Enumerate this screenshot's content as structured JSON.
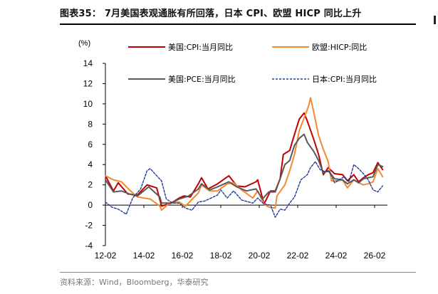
{
  "header": {
    "title": "图表35： 7月美国表观通胀有所回落，日本 CPI、欧盟 HICP 同比上升"
  },
  "footer": {
    "source": "资料来源：Wind，Bloomberg，华泰研究"
  },
  "chart_data": {
    "type": "line",
    "unit_label": "(%)",
    "ylim": [
      -4,
      14
    ],
    "y_ticks": [
      -4,
      -2,
      0,
      2,
      4,
      6,
      8,
      10,
      12,
      14
    ],
    "xlim": [
      "2012-02",
      "2026-10"
    ],
    "x_ticks": [
      "12-02",
      "14-02",
      "16-02",
      "18-02",
      "20-02",
      "22-02",
      "24-02",
      "26-02"
    ],
    "x_tick_dates": [
      "2012-02",
      "2014-02",
      "2016-02",
      "2018-02",
      "2020-02",
      "2022-02",
      "2024-02",
      "2026-02"
    ],
    "grid": false,
    "legend": "top, two rows inside plot",
    "series": [
      {
        "name": "美国:CPI:当月同比",
        "color": "#c00000",
        "style": "solid",
        "points": [
          [
            "2012-02",
            2.9
          ],
          [
            "2012-07",
            1.4
          ],
          [
            "2012-10",
            2.2
          ],
          [
            "2013-04",
            1.1
          ],
          [
            "2013-10",
            1.0
          ],
          [
            "2014-04",
            2.0
          ],
          [
            "2014-10",
            1.7
          ],
          [
            "2015-01",
            -0.1
          ],
          [
            "2015-07",
            0.2
          ],
          [
            "2015-12",
            0.7
          ],
          [
            "2016-03",
            0.9
          ],
          [
            "2016-07",
            0.8
          ],
          [
            "2016-12",
            2.1
          ],
          [
            "2017-02",
            2.7
          ],
          [
            "2017-06",
            1.6
          ],
          [
            "2017-12",
            2.1
          ],
          [
            "2018-07",
            2.9
          ],
          [
            "2018-12",
            1.9
          ],
          [
            "2019-05",
            1.8
          ],
          [
            "2019-12",
            2.3
          ],
          [
            "2020-01",
            2.5
          ],
          [
            "2020-05",
            0.1
          ],
          [
            "2020-09",
            1.4
          ],
          [
            "2020-12",
            1.4
          ],
          [
            "2021-03",
            2.6
          ],
          [
            "2021-05",
            5.0
          ],
          [
            "2021-09",
            5.4
          ],
          [
            "2021-12",
            7.0
          ],
          [
            "2022-03",
            8.5
          ],
          [
            "2022-06",
            9.1
          ],
          [
            "2022-08",
            8.3
          ],
          [
            "2022-12",
            6.5
          ],
          [
            "2023-03",
            5.0
          ],
          [
            "2023-06",
            3.0
          ],
          [
            "2023-09",
            3.7
          ],
          [
            "2024-01",
            3.1
          ],
          [
            "2024-06",
            3.0
          ],
          [
            "2024-09",
            2.4
          ],
          [
            "2025-01",
            3.0
          ],
          [
            "2025-04",
            2.3
          ],
          [
            "2025-07",
            2.7
          ],
          [
            "2025-10",
            3.0
          ],
          [
            "2026-01",
            3.2
          ],
          [
            "2026-04",
            4.2
          ],
          [
            "2026-07",
            3.5
          ]
        ]
      },
      {
        "name": "欧盟:HICP:同比",
        "color": "#f28a30",
        "style": "solid",
        "points": [
          [
            "2012-02",
            2.9
          ],
          [
            "2012-07",
            2.5
          ],
          [
            "2012-12",
            2.3
          ],
          [
            "2013-05",
            1.5
          ],
          [
            "2013-10",
            0.8
          ],
          [
            "2014-06",
            0.6
          ],
          [
            "2014-12",
            -0.1
          ],
          [
            "2015-01",
            -0.5
          ],
          [
            "2015-06",
            0.2
          ],
          [
            "2015-12",
            0.3
          ],
          [
            "2016-04",
            -0.1
          ],
          [
            "2016-12",
            1.2
          ],
          [
            "2017-02",
            2.0
          ],
          [
            "2017-07",
            1.4
          ],
          [
            "2017-12",
            1.4
          ],
          [
            "2018-06",
            2.1
          ],
          [
            "2018-10",
            2.2
          ],
          [
            "2019-03",
            1.5
          ],
          [
            "2019-10",
            0.7
          ],
          [
            "2020-01",
            1.4
          ],
          [
            "2020-05",
            0.1
          ],
          [
            "2020-08",
            -0.2
          ],
          [
            "2020-12",
            -0.3
          ],
          [
            "2021-01",
            0.9
          ],
          [
            "2021-06",
            2.0
          ],
          [
            "2021-09",
            3.4
          ],
          [
            "2021-12",
            5.0
          ],
          [
            "2022-03",
            7.4
          ],
          [
            "2022-06",
            8.6
          ],
          [
            "2022-09",
            9.9
          ],
          [
            "2022-10",
            10.6
          ],
          [
            "2022-12",
            9.2
          ],
          [
            "2023-03",
            6.9
          ],
          [
            "2023-06",
            5.5
          ],
          [
            "2023-09",
            4.3
          ],
          [
            "2023-11",
            2.4
          ],
          [
            "2024-03",
            2.4
          ],
          [
            "2024-06",
            2.5
          ],
          [
            "2024-09",
            1.7
          ],
          [
            "2025-01",
            2.5
          ],
          [
            "2025-04",
            2.2
          ],
          [
            "2025-07",
            2.0
          ],
          [
            "2025-10",
            2.1
          ],
          [
            "2026-01",
            2.3
          ],
          [
            "2026-04",
            3.6
          ],
          [
            "2026-07",
            2.8
          ]
        ]
      },
      {
        "name": "美国:PCE:当月同比",
        "color": "#595959",
        "style": "solid",
        "points": [
          [
            "2012-02",
            2.5
          ],
          [
            "2012-07",
            1.3
          ],
          [
            "2012-12",
            1.4
          ],
          [
            "2013-05",
            1.1
          ],
          [
            "2013-10",
            0.9
          ],
          [
            "2014-05",
            1.8
          ],
          [
            "2014-12",
            0.8
          ],
          [
            "2015-01",
            0.2
          ],
          [
            "2015-07",
            0.2
          ],
          [
            "2015-12",
            0.6
          ],
          [
            "2016-06",
            0.9
          ],
          [
            "2016-12",
            1.6
          ],
          [
            "2017-02",
            2.1
          ],
          [
            "2017-07",
            1.5
          ],
          [
            "2017-12",
            1.8
          ],
          [
            "2018-07",
            2.3
          ],
          [
            "2018-12",
            1.8
          ],
          [
            "2019-06",
            1.4
          ],
          [
            "2019-12",
            1.6
          ],
          [
            "2020-04",
            0.6
          ],
          [
            "2020-08",
            1.3
          ],
          [
            "2020-12",
            1.3
          ],
          [
            "2021-03",
            2.6
          ],
          [
            "2021-06",
            4.0
          ],
          [
            "2021-09",
            4.4
          ],
          [
            "2021-12",
            5.9
          ],
          [
            "2022-03",
            6.6
          ],
          [
            "2022-06",
            7.0
          ],
          [
            "2022-08",
            6.2
          ],
          [
            "2022-12",
            5.3
          ],
          [
            "2023-03",
            4.4
          ],
          [
            "2023-06",
            3.2
          ],
          [
            "2023-09",
            3.4
          ],
          [
            "2024-01",
            2.6
          ],
          [
            "2024-06",
            2.5
          ],
          [
            "2024-09",
            2.1
          ],
          [
            "2025-01",
            2.5
          ],
          [
            "2025-04",
            2.2
          ],
          [
            "2025-07",
            2.6
          ],
          [
            "2025-10",
            2.7
          ],
          [
            "2026-01",
            2.8
          ],
          [
            "2026-04",
            4.0
          ],
          [
            "2026-07",
            3.8
          ]
        ]
      },
      {
        "name": "日本:CPI:当月同比",
        "color": "#1f3a93",
        "style": "dashed",
        "points": [
          [
            "2012-02",
            0.3
          ],
          [
            "2012-06",
            -0.2
          ],
          [
            "2012-10",
            -0.4
          ],
          [
            "2013-03",
            -0.9
          ],
          [
            "2013-07",
            0.7
          ],
          [
            "2013-12",
            1.6
          ],
          [
            "2014-04",
            3.4
          ],
          [
            "2014-06",
            3.6
          ],
          [
            "2014-10",
            2.9
          ],
          [
            "2015-01",
            2.4
          ],
          [
            "2015-04",
            0.6
          ],
          [
            "2015-08",
            0.2
          ],
          [
            "2015-12",
            0.2
          ],
          [
            "2016-04",
            -0.3
          ],
          [
            "2016-08",
            -0.5
          ],
          [
            "2016-12",
            0.3
          ],
          [
            "2017-04",
            0.4
          ],
          [
            "2017-12",
            1.0
          ],
          [
            "2018-02",
            1.5
          ],
          [
            "2018-06",
            0.7
          ],
          [
            "2018-10",
            1.4
          ],
          [
            "2019-03",
            0.5
          ],
          [
            "2019-10",
            0.2
          ],
          [
            "2020-01",
            0.7
          ],
          [
            "2020-05",
            0.1
          ],
          [
            "2020-09",
            0.0
          ],
          [
            "2020-12",
            -1.2
          ],
          [
            "2021-03",
            -0.4
          ],
          [
            "2021-06",
            -0.5
          ],
          [
            "2021-09",
            0.2
          ],
          [
            "2021-12",
            0.8
          ],
          [
            "2022-04",
            2.5
          ],
          [
            "2022-08",
            3.0
          ],
          [
            "2022-10",
            3.7
          ],
          [
            "2023-01",
            4.3
          ],
          [
            "2023-04",
            3.5
          ],
          [
            "2023-07",
            3.3
          ],
          [
            "2023-10",
            3.3
          ],
          [
            "2024-01",
            2.2
          ],
          [
            "2024-04",
            2.5
          ],
          [
            "2024-07",
            2.8
          ],
          [
            "2024-10",
            2.3
          ],
          [
            "2025-01",
            4.0
          ],
          [
            "2025-04",
            3.6
          ],
          [
            "2025-07",
            3.1
          ],
          [
            "2025-10",
            2.5
          ],
          [
            "2026-01",
            1.5
          ],
          [
            "2026-04",
            1.3
          ],
          [
            "2026-07",
            1.9
          ]
        ]
      }
    ]
  }
}
